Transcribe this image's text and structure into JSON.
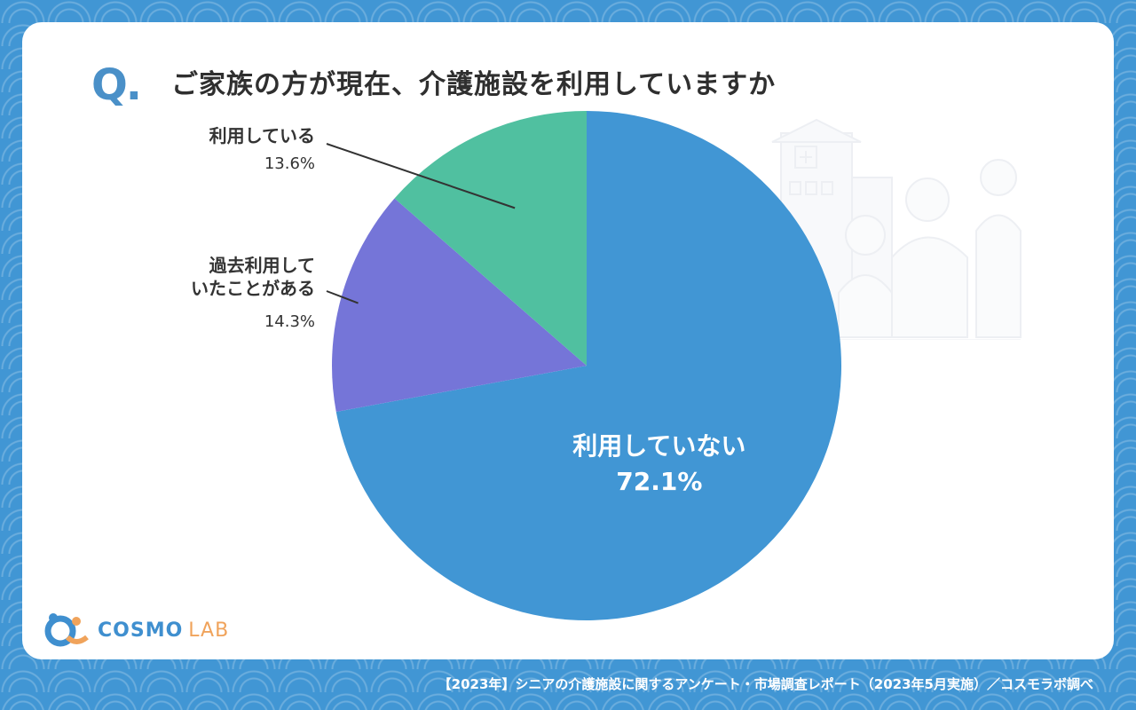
{
  "question_mark": "Q.",
  "title": "ご家族の方が現在、介護施設を利用していますか",
  "logo": {
    "name": "COSMO",
    "suffix": "LAB"
  },
  "footer": "【2023年】シニアの介護施設に関するアンケート・市場調査レポート（2023年5月実施）／コスモラボ調べ",
  "chart_data": {
    "type": "pie",
    "title": "ご家族の方が現在、介護施設を利用していますか",
    "slices": [
      {
        "label": "利用していない",
        "value": 72.1,
        "display": "72.1%",
        "color": "#4196d4"
      },
      {
        "label": "過去利用していたことがある",
        "label_lines": [
          "過去利用して",
          "いたことがある"
        ],
        "value": 14.3,
        "display": "14.3%",
        "color": "#7575d8"
      },
      {
        "label": "利用している",
        "value": 13.6,
        "display": "13.6%",
        "color": "#50c0a0"
      }
    ]
  }
}
